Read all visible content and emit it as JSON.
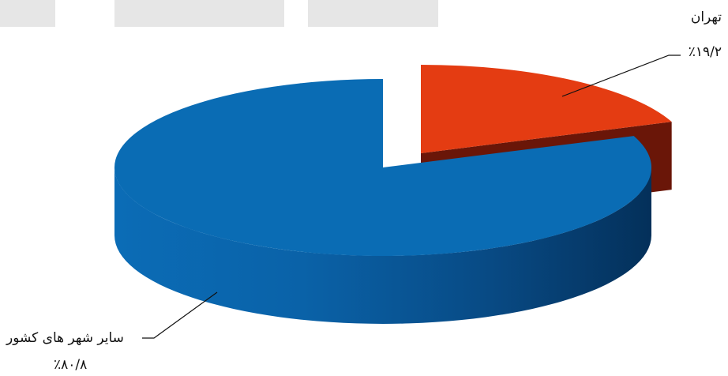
{
  "chart_data": {
    "type": "pie",
    "style": "3d-exploded",
    "slices": [
      {
        "label": "تهران",
        "value": 19.2,
        "value_text": "٪۱۹/۲",
        "color": "#e43c12",
        "side_color": "#6a1608"
      },
      {
        "label": "سایر شهر های کشور",
        "value": 80.8,
        "value_text": "٪۸۰/۸",
        "color": "#0a6cb4",
        "side_color": "#05427a"
      }
    ],
    "legend": "none",
    "title": ""
  }
}
